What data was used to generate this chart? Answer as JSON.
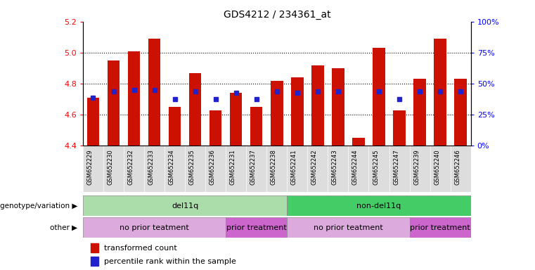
{
  "title": "GDS4212 / 234361_at",
  "samples": [
    "GSM652229",
    "GSM652230",
    "GSM652232",
    "GSM652233",
    "GSM652234",
    "GSM652235",
    "GSM652236",
    "GSM652231",
    "GSM652237",
    "GSM652238",
    "GSM652241",
    "GSM652242",
    "GSM652243",
    "GSM652244",
    "GSM652245",
    "GSM652247",
    "GSM652239",
    "GSM652240",
    "GSM652246"
  ],
  "red_values": [
    4.71,
    4.95,
    5.01,
    5.09,
    4.65,
    4.87,
    4.63,
    4.74,
    4.65,
    4.82,
    4.84,
    4.92,
    4.9,
    4.45,
    5.03,
    4.63,
    4.83,
    5.09,
    4.83
  ],
  "blue_values": [
    4.71,
    4.75,
    4.76,
    4.76,
    4.7,
    4.75,
    4.7,
    4.74,
    4.7,
    4.75,
    4.74,
    4.75,
    4.75,
    null,
    4.75,
    4.7,
    4.75,
    4.75,
    4.75
  ],
  "ymin": 4.4,
  "ymax": 5.2,
  "y_ticks": [
    4.4,
    4.6,
    4.8,
    5.0,
    5.2
  ],
  "right_y_ticks": [
    0,
    25,
    50,
    75,
    100
  ],
  "right_y_labels": [
    "0%",
    "25%",
    "50%",
    "75%",
    "100%"
  ],
  "bar_color": "#cc1100",
  "blue_color": "#2222cc",
  "bar_bottom": 4.4,
  "bar_width": 0.6,
  "genotype_groups": [
    {
      "label": "del11q",
      "start": 0,
      "end": 10,
      "color": "#aaddaa"
    },
    {
      "label": "non-del11q",
      "start": 10,
      "end": 19,
      "color": "#44cc66"
    }
  ],
  "other_regions": [
    {
      "label": "no prior teatment",
      "start": 0,
      "end": 7,
      "color": "#ddaadd"
    },
    {
      "label": "prior treatment",
      "start": 7,
      "end": 10,
      "color": "#cc66cc"
    },
    {
      "label": "no prior teatment",
      "start": 10,
      "end": 16,
      "color": "#ddaadd"
    },
    {
      "label": "prior treatment",
      "start": 16,
      "end": 19,
      "color": "#cc66cc"
    }
  ],
  "genotype_row_label": "genotype/variation",
  "other_row_label": "other",
  "legend_red": "transformed count",
  "legend_blue": "percentile rank within the sample"
}
